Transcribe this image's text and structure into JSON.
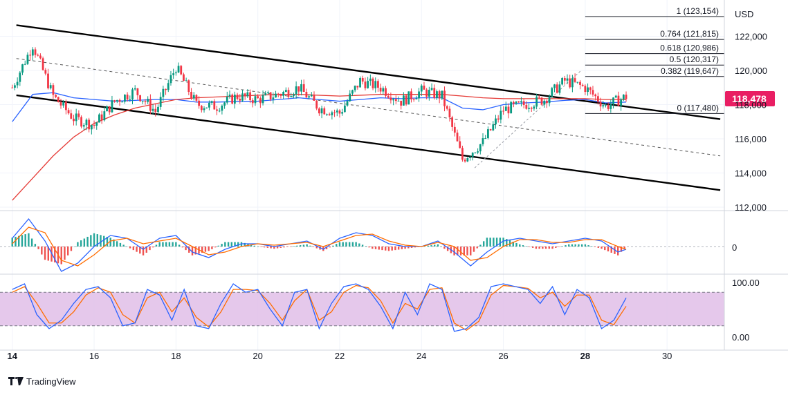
{
  "brand": {
    "name": "TradingView",
    "logo_icon": "tradingview-logo-icon"
  },
  "chart_data": {
    "type": "line",
    "title": "",
    "currency_label": "USD",
    "last_price_label": "118,478",
    "last_price_color": "#e91e63",
    "x_ticks": [
      "14",
      "16",
      "18",
      "20",
      "22",
      "24",
      "26",
      "28",
      "30"
    ],
    "x_range": [
      13.7,
      31.4
    ],
    "price_axis": {
      "range": [
        112000,
        123800
      ],
      "ticks": [
        {
          "value": 112000,
          "label": "112,000"
        },
        {
          "value": 114000,
          "label": "114,000"
        },
        {
          "value": 116000,
          "label": "116,000"
        },
        {
          "value": 118000,
          "label": "118,000"
        },
        {
          "value": 120000,
          "label": "120,000"
        },
        {
          "value": 122000,
          "label": "122,000"
        }
      ]
    },
    "price_series": {
      "name": "",
      "up_color": "#089981",
      "down_color": "#f23645",
      "x": [
        14.0,
        14.5,
        15.0,
        15.5,
        16.0,
        16.5,
        17.0,
        17.5,
        18.0,
        18.5,
        19.0,
        19.5,
        20.0,
        20.5,
        21.0,
        21.5,
        22.0,
        22.5,
        23.0,
        23.5,
        24.0,
        24.5,
        25.0,
        25.5,
        26.0,
        26.5,
        27.0,
        27.5,
        28.0,
        28.5,
        29.0
      ],
      "close": [
        119000,
        121500,
        118500,
        117200,
        116800,
        118200,
        118800,
        117600,
        120200,
        118000,
        117900,
        118500,
        118300,
        118600,
        119000,
        117800,
        117500,
        119400,
        119000,
        118200,
        118800,
        118500,
        114800,
        115800,
        117700,
        118000,
        118300,
        119400,
        119000,
        117900,
        118478
      ]
    },
    "moving_averages": [
      {
        "name": "",
        "color": "#2962ff",
        "values": [
          117000,
          118600,
          118700,
          118400,
          118300,
          118200,
          118250,
          118300,
          118300,
          118150,
          118150,
          118180,
          118200,
          118300,
          118400,
          118300,
          118200,
          118300,
          118400,
          118350,
          118400,
          118400,
          117800,
          117700,
          118000,
          118100,
          118150,
          118250,
          118300,
          118100,
          118150
        ]
      },
      {
        "name": "",
        "color": "#e53935",
        "values": [
          112400,
          113700,
          115000,
          116100,
          116900,
          117400,
          117800,
          118050,
          118300,
          118400,
          118450,
          118500,
          118550,
          118600,
          118600,
          118550,
          118500,
          118550,
          118600,
          118600,
          118600,
          118600,
          118500,
          118400,
          118350,
          118350,
          118350,
          118350,
          118350,
          118300,
          118300
        ]
      }
    ],
    "trend_channel": {
      "upper": {
        "x": [
          14.1,
          31.3
        ],
        "y": [
          122650,
          117150
        ]
      },
      "lower": {
        "x": [
          14.1,
          31.3
        ],
        "y": [
          118550,
          113000
        ]
      },
      "middle": {
        "x": [
          14.1,
          31.3
        ],
        "y": [
          120700,
          115000
        ]
      }
    },
    "fibonacci": {
      "levels": [
        {
          "ratio": 1,
          "label": "1 (123,154)",
          "price": 123154
        },
        {
          "ratio": 0.764,
          "label": "0.764 (121,815)",
          "price": 121815
        },
        {
          "ratio": 0.618,
          "label": "0.618 (120,986)",
          "price": 120986
        },
        {
          "ratio": 0.5,
          "label": "0.5 (120,317)",
          "price": 120317
        },
        {
          "ratio": 0.382,
          "label": "0.382 (119,647)",
          "price": 119647
        },
        {
          "ratio": 0,
          "label": "0 (117,480)",
          "price": 117480
        }
      ],
      "x_range": [
        28.0,
        31.4
      ]
    },
    "macd": {
      "zero_label": "0",
      "macd_color": "#2962ff",
      "signal_color": "#ff6d00",
      "hist_up_color": "#26a69a",
      "hist_down_color": "#ef5350",
      "x": [
        14.0,
        14.4,
        14.8,
        15.2,
        15.6,
        16.0,
        16.4,
        16.8,
        17.2,
        17.6,
        18.0,
        18.4,
        18.8,
        19.2,
        19.6,
        20.0,
        20.4,
        20.8,
        21.2,
        21.6,
        22.0,
        22.4,
        22.8,
        23.2,
        23.6,
        24.0,
        24.4,
        24.8,
        25.2,
        25.6,
        26.0,
        26.4,
        26.8,
        27.2,
        27.6,
        28.0,
        28.4,
        28.8,
        29.0
      ],
      "macd": [
        0.3,
        1.0,
        0.2,
        -0.9,
        -0.6,
        0.0,
        0.4,
        0.3,
        -0.1,
        0.3,
        0.4,
        -0.2,
        -0.4,
        -0.1,
        0.1,
        0.1,
        0.0,
        0.1,
        0.2,
        -0.1,
        0.3,
        0.5,
        0.4,
        0.1,
        0.0,
        0.0,
        0.2,
        -0.2,
        -0.7,
        -0.2,
        0.2,
        0.3,
        0.2,
        0.1,
        0.2,
        0.3,
        0.2,
        -0.2,
        -0.1
      ],
      "signal": [
        0.1,
        0.7,
        0.5,
        -0.5,
        -0.7,
        -0.3,
        0.2,
        0.3,
        0.1,
        0.2,
        0.3,
        0.0,
        -0.3,
        -0.2,
        0.0,
        0.1,
        0.05,
        0.1,
        0.15,
        0.0,
        0.2,
        0.4,
        0.45,
        0.2,
        0.05,
        0.0,
        0.15,
        0.0,
        -0.5,
        -0.4,
        0.0,
        0.25,
        0.25,
        0.15,
        0.15,
        0.25,
        0.25,
        0.0,
        -0.1
      ]
    },
    "stochastic": {
      "labels": {
        "top": "100.00",
        "bottom": "0.00"
      },
      "upper_band": 80,
      "lower_band": 20,
      "band_fill": "#e1bee7",
      "k_color": "#2962ff",
      "d_color": "#ff6d00",
      "x": [
        14.0,
        14.3,
        14.6,
        14.9,
        15.2,
        15.5,
        15.8,
        16.1,
        16.4,
        16.7,
        17.0,
        17.3,
        17.6,
        17.9,
        18.2,
        18.5,
        18.8,
        19.1,
        19.4,
        19.7,
        20.0,
        20.3,
        20.6,
        20.9,
        21.2,
        21.5,
        21.8,
        22.1,
        22.4,
        22.7,
        23.0,
        23.3,
        23.6,
        23.9,
        24.2,
        24.5,
        24.8,
        25.1,
        25.4,
        25.7,
        26.0,
        26.3,
        26.6,
        26.9,
        27.2,
        27.5,
        27.8,
        28.1,
        28.4,
        28.7,
        29.0
      ],
      "k": [
        85,
        95,
        40,
        15,
        30,
        60,
        85,
        90,
        70,
        20,
        25,
        85,
        75,
        30,
        85,
        20,
        15,
        60,
        95,
        80,
        85,
        50,
        20,
        80,
        85,
        15,
        60,
        90,
        95,
        85,
        55,
        15,
        80,
        40,
        95,
        85,
        10,
        15,
        35,
        90,
        95,
        90,
        85,
        60,
        90,
        40,
        85,
        70,
        15,
        30,
        70
      ],
      "d": [
        80,
        90,
        60,
        25,
        25,
        45,
        75,
        88,
        80,
        40,
        25,
        70,
        80,
        45,
        70,
        35,
        18,
        45,
        85,
        85,
        83,
        60,
        30,
        65,
        85,
        30,
        45,
        80,
        92,
        88,
        65,
        25,
        60,
        50,
        85,
        88,
        25,
        12,
        28,
        75,
        92,
        90,
        87,
        70,
        80,
        55,
        75,
        75,
        30,
        22,
        55
      ]
    }
  }
}
